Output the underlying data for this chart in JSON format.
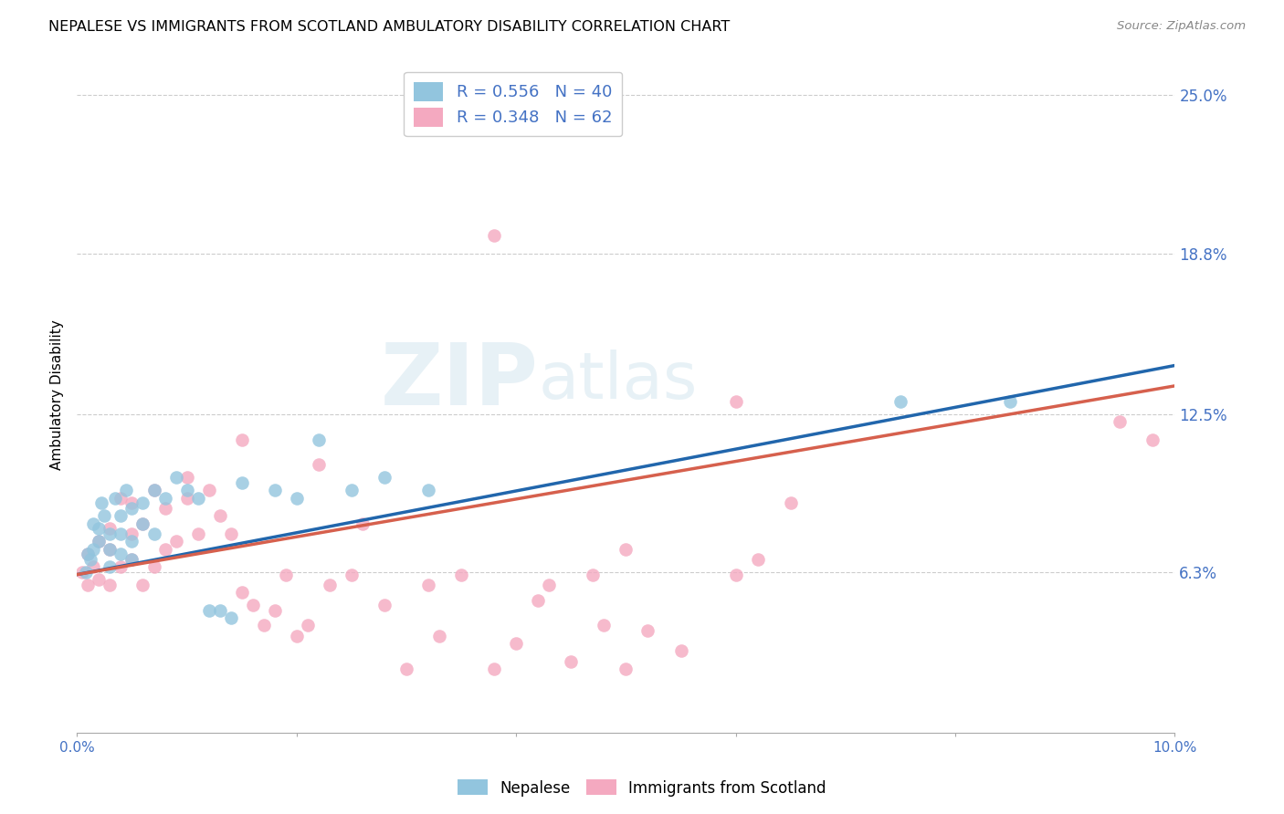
{
  "title": "NEPALESE VS IMMIGRANTS FROM SCOTLAND AMBULATORY DISABILITY CORRELATION CHART",
  "source": "Source: ZipAtlas.com",
  "ylabel": "Ambulatory Disability",
  "xlim": [
    0.0,
    0.1
  ],
  "ylim": [
    0.0,
    0.265
  ],
  "yticks": [
    0.063,
    0.125,
    0.188,
    0.25
  ],
  "ytick_labels": [
    "6.3%",
    "12.5%",
    "18.8%",
    "25.0%"
  ],
  "xticks": [
    0.0,
    0.02,
    0.04,
    0.06,
    0.08,
    0.1
  ],
  "xtick_labels": [
    "0.0%",
    "",
    "",
    "",
    "",
    "10.0%"
  ],
  "color_blue": "#92c5de",
  "color_pink": "#f4a9c0",
  "line_blue": "#2166ac",
  "line_pink": "#d6604d",
  "watermark_zip": "ZIP",
  "watermark_atlas": "atlas",
  "nepalese_x": [
    0.0008,
    0.001,
    0.0012,
    0.0015,
    0.0015,
    0.002,
    0.002,
    0.0022,
    0.0025,
    0.003,
    0.003,
    0.003,
    0.0035,
    0.004,
    0.004,
    0.004,
    0.0045,
    0.005,
    0.005,
    0.005,
    0.006,
    0.006,
    0.007,
    0.007,
    0.008,
    0.009,
    0.01,
    0.011,
    0.012,
    0.013,
    0.014,
    0.015,
    0.018,
    0.02,
    0.022,
    0.025,
    0.028,
    0.032,
    0.075,
    0.085
  ],
  "nepalese_y": [
    0.063,
    0.07,
    0.068,
    0.072,
    0.082,
    0.075,
    0.08,
    0.09,
    0.085,
    0.072,
    0.078,
    0.065,
    0.092,
    0.07,
    0.078,
    0.085,
    0.095,
    0.068,
    0.075,
    0.088,
    0.082,
    0.09,
    0.078,
    0.095,
    0.092,
    0.1,
    0.095,
    0.092,
    0.048,
    0.048,
    0.045,
    0.098,
    0.095,
    0.092,
    0.115,
    0.095,
    0.1,
    0.095,
    0.13,
    0.13
  ],
  "scotland_x": [
    0.0005,
    0.001,
    0.001,
    0.0015,
    0.002,
    0.002,
    0.003,
    0.003,
    0.003,
    0.004,
    0.004,
    0.005,
    0.005,
    0.005,
    0.006,
    0.006,
    0.007,
    0.007,
    0.008,
    0.008,
    0.009,
    0.01,
    0.01,
    0.011,
    0.012,
    0.013,
    0.014,
    0.015,
    0.015,
    0.016,
    0.017,
    0.018,
    0.019,
    0.02,
    0.021,
    0.022,
    0.023,
    0.025,
    0.026,
    0.028,
    0.03,
    0.032,
    0.033,
    0.035,
    0.038,
    0.04,
    0.042,
    0.043,
    0.045,
    0.047,
    0.048,
    0.05,
    0.05,
    0.052,
    0.055,
    0.06,
    0.062,
    0.065,
    0.038,
    0.06,
    0.095,
    0.098
  ],
  "scotland_y": [
    0.063,
    0.058,
    0.07,
    0.065,
    0.06,
    0.075,
    0.058,
    0.072,
    0.08,
    0.065,
    0.092,
    0.068,
    0.078,
    0.09,
    0.058,
    0.082,
    0.065,
    0.095,
    0.072,
    0.088,
    0.075,
    0.092,
    0.1,
    0.078,
    0.095,
    0.085,
    0.078,
    0.055,
    0.115,
    0.05,
    0.042,
    0.048,
    0.062,
    0.038,
    0.042,
    0.105,
    0.058,
    0.062,
    0.082,
    0.05,
    0.025,
    0.058,
    0.038,
    0.062,
    0.025,
    0.035,
    0.052,
    0.058,
    0.028,
    0.062,
    0.042,
    0.025,
    0.072,
    0.04,
    0.032,
    0.062,
    0.068,
    0.09,
    0.195,
    0.13,
    0.122,
    0.115
  ]
}
